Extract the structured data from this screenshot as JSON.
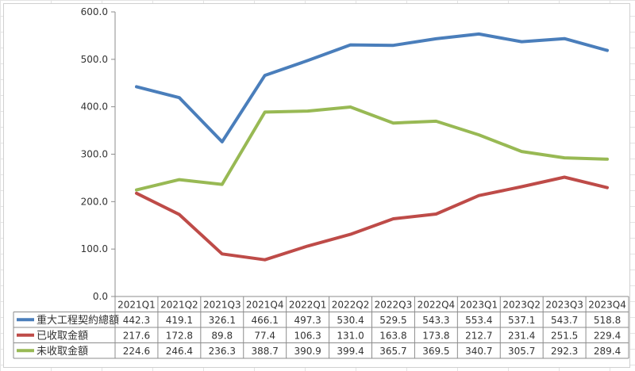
{
  "chart_data": {
    "type": "line",
    "categories": [
      "2021Q1",
      "2021Q2",
      "2021Q3",
      "2021Q4",
      "2022Q1",
      "2022Q2",
      "2022Q3",
      "2022Q4",
      "2023Q1",
      "2023Q2",
      "2023Q3",
      "2023Q4"
    ],
    "series": [
      {
        "name": "重大工程契約總額",
        "color": "#4a7ebb",
        "values": [
          442.3,
          419.1,
          326.1,
          466.1,
          497.3,
          530.4,
          529.5,
          543.3,
          553.4,
          537.1,
          543.7,
          518.8
        ],
        "labels": [
          "442.3",
          "419.1",
          "326.1",
          "466.1",
          "497.3",
          "530.4",
          "529.5",
          "543.3",
          "553.4",
          "537.1",
          "543.7",
          "518.8"
        ]
      },
      {
        "name": "已收取金額",
        "color": "#be4b48",
        "values": [
          217.6,
          172.8,
          89.8,
          77.4,
          106.3,
          131.0,
          163.8,
          173.8,
          212.7,
          231.4,
          251.5,
          229.4
        ],
        "labels": [
          "217.6",
          "172.8",
          "89.8",
          "77.4",
          "106.3",
          "131.0",
          "163.8",
          "173.8",
          "212.7",
          "231.4",
          "251.5",
          "229.4"
        ]
      },
      {
        "name": "未收取金額",
        "color": "#98b954",
        "values": [
          224.6,
          246.4,
          236.3,
          388.7,
          390.9,
          399.4,
          365.7,
          369.5,
          340.7,
          305.7,
          292.3,
          289.4
        ],
        "labels": [
          "224.6",
          "246.4",
          "236.3",
          "388.7",
          "390.9",
          "399.4",
          "365.7",
          "369.5",
          "340.7",
          "305.7",
          "292.3",
          "289.4"
        ]
      }
    ],
    "ylim": [
      0,
      600
    ],
    "y_ticks": [
      0,
      100,
      200,
      300,
      400,
      500,
      600
    ],
    "y_tick_labels": [
      "0.0",
      "100.0",
      "200.0",
      "300.0",
      "400.0",
      "500.0",
      "600.0"
    ],
    "grid": false,
    "legend": "data-table-below"
  }
}
